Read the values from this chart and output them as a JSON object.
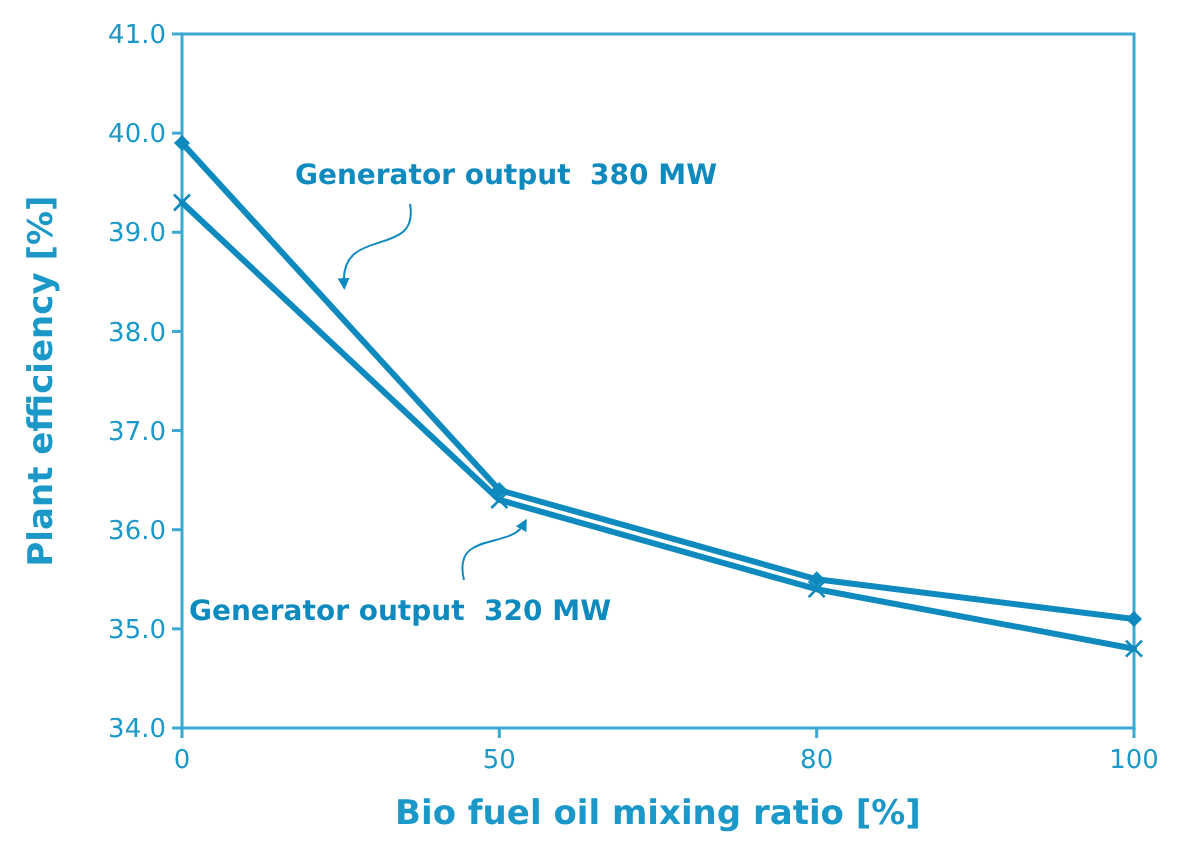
{
  "chart_data": {
    "type": "line",
    "xlabel": "Bio fuel oil mixing ratio [%]",
    "ylabel": "Plant efficiency [%]",
    "categories": [
      "0",
      "50",
      "80",
      "100"
    ],
    "series": [
      {
        "name": "Generator output  380 MW",
        "color": "#0f8abf",
        "values": [
          39.9,
          36.4,
          35.5,
          35.1
        ],
        "marker": "diamond"
      },
      {
        "name": "Generator output  320 MW",
        "color": "#0f8abf",
        "values": [
          39.3,
          36.3,
          35.4,
          34.8
        ],
        "marker": "cross"
      }
    ],
    "ylim": [
      34,
      41
    ],
    "yticks": [
      {
        "value": 34,
        "label": "34.0"
      },
      {
        "value": 35,
        "label": "35.0"
      },
      {
        "value": 36,
        "label": "36.0"
      },
      {
        "value": 37,
        "label": "37.0"
      },
      {
        "value": 38,
        "label": "38.0"
      },
      {
        "value": 39,
        "label": "39.0"
      },
      {
        "value": 40,
        "label": "40.0"
      },
      {
        "value": 41,
        "label": "41.0"
      }
    ],
    "grid": false,
    "line_style": "solid"
  }
}
